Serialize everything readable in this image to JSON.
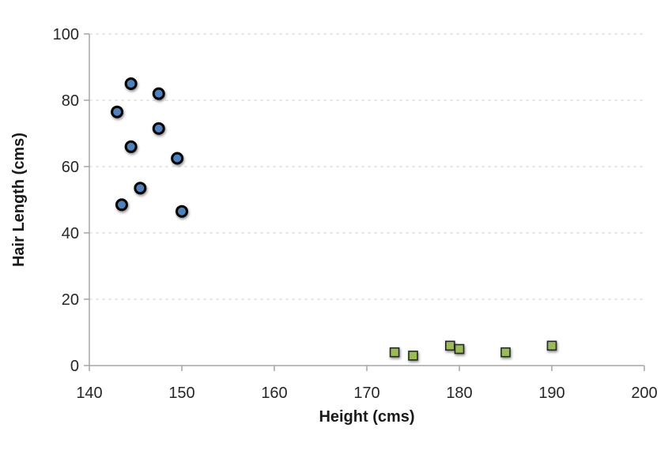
{
  "chart_data": {
    "type": "scatter",
    "title": "",
    "xlabel": "Height (cms)",
    "ylabel": "Hair Length (cms)",
    "xlim": [
      140,
      200
    ],
    "ylim": [
      0,
      100
    ],
    "x_ticks": [
      140,
      150,
      160,
      170,
      180,
      190,
      200
    ],
    "y_ticks": [
      0,
      20,
      40,
      60,
      80,
      100
    ],
    "grid": "horizontal-dashed",
    "legend": "none",
    "series": [
      {
        "name": "circle-series",
        "marker": "circle",
        "fill": "#4f81bd",
        "stroke": "#000000",
        "points": [
          [
            144.5,
            85
          ],
          [
            147.5,
            82
          ],
          [
            143,
            76.5
          ],
          [
            147.5,
            71.5
          ],
          [
            144.5,
            66
          ],
          [
            149.5,
            62.5
          ],
          [
            145.5,
            53.5
          ],
          [
            143.5,
            48.5
          ],
          [
            150,
            46.5
          ]
        ]
      },
      {
        "name": "square-series",
        "marker": "square",
        "fill": "#9bbb59",
        "stroke": "#262626",
        "points": [
          [
            173,
            4
          ],
          [
            175,
            3
          ],
          [
            179,
            6
          ],
          [
            180,
            5
          ],
          [
            185,
            4
          ],
          [
            190,
            6
          ]
        ]
      }
    ]
  },
  "colors": {
    "gridline": "#dcdcdc",
    "axis": "#a6a6a6",
    "tick_text": "#262626",
    "title_text": "#1a1a1a",
    "background": "#ffffff"
  }
}
